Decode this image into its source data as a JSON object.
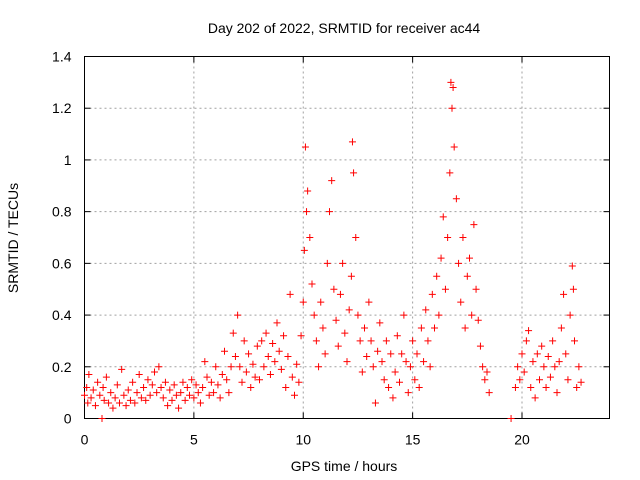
{
  "chart_data": {
    "type": "scatter",
    "title": "Day 202 of 2022, SRMTID for receiver ac44",
    "xlabel": "GPS time / hours",
    "ylabel": "SRMTID / TECUs",
    "xlim": [
      0,
      24
    ],
    "ylim": [
      0,
      1.4
    ],
    "xticks": [
      0,
      5,
      10,
      15,
      20
    ],
    "xtick_labels": [
      "0",
      "5",
      "10",
      "15",
      "20"
    ],
    "yticks": [
      0,
      0.2,
      0.4,
      0.6,
      0.8,
      1.0,
      1.2,
      1.4
    ],
    "ytick_labels": [
      "0",
      "0.2",
      "0.4",
      "0.6",
      "0.8",
      "1",
      "1.2",
      "1.4"
    ],
    "grid": true,
    "marker": "+",
    "series": [
      {
        "name": "SRMTID",
        "color": "#ff0000",
        "points": [
          [
            0.0,
            0.09
          ],
          [
            0.1,
            0.12
          ],
          [
            0.15,
            0.06
          ],
          [
            0.2,
            0.17
          ],
          [
            0.3,
            0.08
          ],
          [
            0.4,
            0.11
          ],
          [
            0.5,
            0.05
          ],
          [
            0.6,
            0.14
          ],
          [
            0.7,
            0.09
          ],
          [
            0.8,
            0.0
          ],
          [
            0.85,
            0.12
          ],
          [
            0.9,
            0.07
          ],
          [
            1.0,
            0.16
          ],
          [
            1.1,
            0.06
          ],
          [
            1.2,
            0.1
          ],
          [
            1.3,
            0.04
          ],
          [
            1.4,
            0.08
          ],
          [
            1.5,
            0.13
          ],
          [
            1.6,
            0.06
          ],
          [
            1.7,
            0.19
          ],
          [
            1.8,
            0.09
          ],
          [
            1.9,
            0.05
          ],
          [
            2.0,
            0.11
          ],
          [
            2.1,
            0.07
          ],
          [
            2.2,
            0.14
          ],
          [
            2.3,
            0.06
          ],
          [
            2.4,
            0.1
          ],
          [
            2.5,
            0.17
          ],
          [
            2.6,
            0.08
          ],
          [
            2.7,
            0.12
          ],
          [
            2.8,
            0.07
          ],
          [
            2.9,
            0.15
          ],
          [
            3.0,
            0.09
          ],
          [
            3.1,
            0.13
          ],
          [
            3.2,
            0.18
          ],
          [
            3.3,
            0.1
          ],
          [
            3.4,
            0.2
          ],
          [
            3.5,
            0.12
          ],
          [
            3.6,
            0.08
          ],
          [
            3.7,
            0.14
          ],
          [
            3.8,
            0.05
          ],
          [
            3.9,
            0.11
          ],
          [
            4.0,
            0.07
          ],
          [
            4.1,
            0.13
          ],
          [
            4.2,
            0.09
          ],
          [
            4.3,
            0.04
          ],
          [
            4.4,
            0.1
          ],
          [
            4.5,
            0.14
          ],
          [
            4.6,
            0.07
          ],
          [
            4.7,
            0.12
          ],
          [
            4.8,
            0.09
          ],
          [
            4.9,
            0.15
          ],
          [
            5.0,
            0.08
          ],
          [
            5.1,
            0.13
          ],
          [
            5.2,
            0.1
          ],
          [
            5.3,
            0.06
          ],
          [
            5.4,
            0.12
          ],
          [
            5.5,
            0.22
          ],
          [
            5.6,
            0.16
          ],
          [
            5.7,
            0.09
          ],
          [
            5.8,
            0.14
          ],
          [
            5.9,
            0.1
          ],
          [
            6.0,
            0.2
          ],
          [
            6.1,
            0.13
          ],
          [
            6.2,
            0.08
          ],
          [
            6.3,
            0.17
          ],
          [
            6.4,
            0.26
          ],
          [
            6.5,
            0.15
          ],
          [
            6.6,
            0.1
          ],
          [
            6.7,
            0.2
          ],
          [
            6.8,
            0.33
          ],
          [
            6.9,
            0.24
          ],
          [
            7.0,
            0.4
          ],
          [
            7.1,
            0.2
          ],
          [
            7.2,
            0.14
          ],
          [
            7.3,
            0.3
          ],
          [
            7.4,
            0.18
          ],
          [
            7.5,
            0.25
          ],
          [
            7.6,
            0.12
          ],
          [
            7.7,
            0.21
          ],
          [
            7.8,
            0.16
          ],
          [
            7.9,
            0.28
          ],
          [
            8.0,
            0.15
          ],
          [
            8.1,
            0.3
          ],
          [
            8.2,
            0.2
          ],
          [
            8.3,
            0.33
          ],
          [
            8.4,
            0.24
          ],
          [
            8.5,
            0.17
          ],
          [
            8.6,
            0.29
          ],
          [
            8.7,
            0.22
          ],
          [
            8.8,
            0.37
          ],
          [
            8.9,
            0.26
          ],
          [
            9.0,
            0.19
          ],
          [
            9.1,
            0.32
          ],
          [
            9.2,
            0.12
          ],
          [
            9.3,
            0.24
          ],
          [
            9.4,
            0.48
          ],
          [
            9.5,
            0.16
          ],
          [
            9.6,
            0.09
          ],
          [
            9.7,
            0.21
          ],
          [
            9.8,
            0.14
          ],
          [
            9.9,
            0.32
          ],
          [
            10.0,
            0.45
          ],
          [
            10.05,
            0.65
          ],
          [
            10.1,
            1.05
          ],
          [
            10.15,
            0.8
          ],
          [
            10.2,
            0.88
          ],
          [
            10.3,
            0.7
          ],
          [
            10.4,
            0.52
          ],
          [
            10.5,
            0.4
          ],
          [
            10.6,
            0.3
          ],
          [
            10.7,
            0.2
          ],
          [
            10.8,
            0.45
          ],
          [
            10.9,
            0.35
          ],
          [
            11.0,
            0.25
          ],
          [
            11.1,
            0.6
          ],
          [
            11.2,
            0.8
          ],
          [
            11.3,
            0.92
          ],
          [
            11.4,
            0.5
          ],
          [
            11.5,
            0.38
          ],
          [
            11.6,
            0.28
          ],
          [
            11.7,
            0.48
          ],
          [
            11.8,
            0.6
          ],
          [
            11.9,
            0.33
          ],
          [
            12.0,
            0.22
          ],
          [
            12.1,
            0.42
          ],
          [
            12.2,
            0.55
          ],
          [
            12.25,
            1.07
          ],
          [
            12.3,
            0.95
          ],
          [
            12.4,
            0.7
          ],
          [
            12.5,
            0.4
          ],
          [
            12.6,
            0.3
          ],
          [
            12.7,
            0.18
          ],
          [
            12.8,
            0.35
          ],
          [
            12.9,
            0.24
          ],
          [
            13.0,
            0.45
          ],
          [
            13.1,
            0.3
          ],
          [
            13.2,
            0.2
          ],
          [
            13.3,
            0.06
          ],
          [
            13.4,
            0.26
          ],
          [
            13.5,
            0.37
          ],
          [
            13.6,
            0.22
          ],
          [
            13.7,
            0.15
          ],
          [
            13.8,
            0.3
          ],
          [
            13.9,
            0.12
          ],
          [
            14.0,
            0.25
          ],
          [
            14.1,
            0.08
          ],
          [
            14.2,
            0.18
          ],
          [
            14.3,
            0.32
          ],
          [
            14.4,
            0.14
          ],
          [
            14.5,
            0.25
          ],
          [
            14.6,
            0.4
          ],
          [
            14.7,
            0.22
          ],
          [
            14.8,
            0.1
          ],
          [
            14.9,
            0.2
          ],
          [
            15.0,
            0.3
          ],
          [
            15.1,
            0.15
          ],
          [
            15.2,
            0.25
          ],
          [
            15.3,
            0.12
          ],
          [
            15.4,
            0.35
          ],
          [
            15.5,
            0.22
          ],
          [
            15.6,
            0.42
          ],
          [
            15.7,
            0.3
          ],
          [
            15.8,
            0.2
          ],
          [
            15.9,
            0.48
          ],
          [
            16.0,
            0.35
          ],
          [
            16.1,
            0.55
          ],
          [
            16.2,
            0.4
          ],
          [
            16.3,
            0.62
          ],
          [
            16.4,
            0.78
          ],
          [
            16.5,
            0.5
          ],
          [
            16.6,
            0.7
          ],
          [
            16.7,
            0.95
          ],
          [
            16.75,
            1.3
          ],
          [
            16.8,
            1.2
          ],
          [
            16.85,
            1.28
          ],
          [
            16.9,
            1.05
          ],
          [
            17.0,
            0.85
          ],
          [
            17.1,
            0.6
          ],
          [
            17.2,
            0.45
          ],
          [
            17.3,
            0.7
          ],
          [
            17.4,
            0.35
          ],
          [
            17.5,
            0.55
          ],
          [
            17.6,
            0.62
          ],
          [
            17.7,
            0.4
          ],
          [
            17.8,
            0.75
          ],
          [
            17.9,
            0.5
          ],
          [
            18.0,
            0.38
          ],
          [
            18.1,
            0.28
          ],
          [
            18.2,
            0.2
          ],
          [
            18.3,
            0.15
          ],
          [
            18.4,
            0.18
          ],
          [
            18.5,
            0.1
          ],
          [
            19.5,
            0.0
          ],
          [
            19.7,
            0.12
          ],
          [
            19.8,
            0.2
          ],
          [
            19.9,
            0.15
          ],
          [
            20.0,
            0.25
          ],
          [
            20.1,
            0.18
          ],
          [
            20.2,
            0.3
          ],
          [
            20.3,
            0.34
          ],
          [
            20.4,
            0.12
          ],
          [
            20.5,
            0.22
          ],
          [
            20.6,
            0.08
          ],
          [
            20.7,
            0.25
          ],
          [
            20.8,
            0.15
          ],
          [
            20.9,
            0.28
          ],
          [
            21.0,
            0.2
          ],
          [
            21.1,
            0.12
          ],
          [
            21.2,
            0.24
          ],
          [
            21.3,
            0.16
          ],
          [
            21.4,
            0.3
          ],
          [
            21.5,
            0.2
          ],
          [
            21.6,
            0.1
          ],
          [
            21.7,
            0.22
          ],
          [
            21.8,
            0.35
          ],
          [
            21.9,
            0.48
          ],
          [
            22.0,
            0.25
          ],
          [
            22.1,
            0.15
          ],
          [
            22.2,
            0.4
          ],
          [
            22.3,
            0.59
          ],
          [
            22.35,
            0.5
          ],
          [
            22.4,
            0.3
          ],
          [
            22.5,
            0.12
          ],
          [
            22.6,
            0.2
          ],
          [
            22.7,
            0.14
          ]
        ]
      }
    ]
  }
}
